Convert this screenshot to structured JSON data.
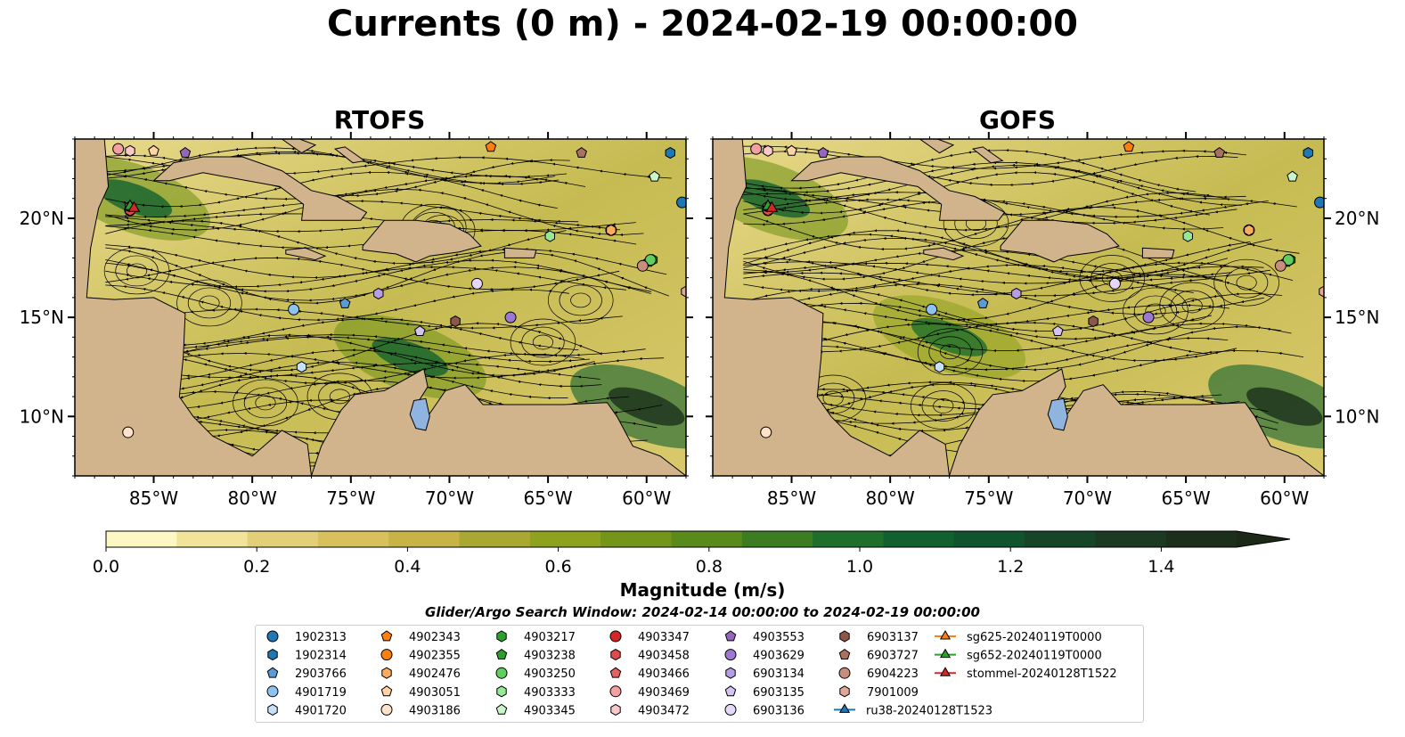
{
  "figure": {
    "title": "Currents (0 m) - 2024-02-19 00:00:00",
    "panels": [
      "RTOFS",
      "GOFS"
    ],
    "lon_ticks": [
      "85°W",
      "80°W",
      "75°W",
      "70°W",
      "65°W",
      "60°W"
    ],
    "lat_ticks": [
      "20°N",
      "15°N",
      "10°N"
    ],
    "colorbar": {
      "label": "Magnitude (m/s)",
      "ticks": [
        "0.0",
        "0.2",
        "0.4",
        "0.6",
        "0.8",
        "1.0",
        "1.2",
        "1.4"
      ],
      "colors": [
        "#fdf7c3",
        "#f1e49a",
        "#e3cf77",
        "#d8c05d",
        "#c8b446",
        "#a9a832",
        "#8fa21f",
        "#74951a",
        "#5a8a1c",
        "#3d7d22",
        "#1f6e2b",
        "#11612e",
        "#0f542c",
        "#174527",
        "#1c3a22",
        "#1c2f1c",
        "#1c2818"
      ]
    },
    "search_window": "Glider/Argo Search Window: 2024-02-14 00:00:00 to 2024-02-19 00:00:00"
  },
  "chart_data": {
    "type": "map",
    "variable": "Currents (0 m)",
    "units": "m/s",
    "colorbar_range": [
      0.0,
      1.5
    ],
    "colorbar_extend": "max",
    "lon_range": [
      -89,
      -58
    ],
    "lat_range": [
      7,
      24
    ],
    "panels": [
      {
        "name": "RTOFS",
        "fast_current_areas": [
          {
            "lon": -72,
            "lat": 13,
            "magnitude": 1.0
          },
          {
            "lon": -60,
            "lat": 10.5,
            "magnitude": 1.4
          },
          {
            "lon": -86,
            "lat": 21,
            "magnitude": 1.0
          }
        ]
      },
      {
        "name": "GOFS",
        "fast_current_areas": [
          {
            "lon": -60,
            "lat": 10.5,
            "magnitude": 1.4
          },
          {
            "lon": -77,
            "lat": 14,
            "magnitude": 0.9
          },
          {
            "lon": -86,
            "lat": 21,
            "magnitude": 1.0
          }
        ]
      }
    ],
    "stations": [
      {
        "id": "1902313",
        "lon": -58.2,
        "lat": 20.8,
        "marker": "circle",
        "color": "#1f77b4"
      },
      {
        "id": "1902314",
        "lon": -58.8,
        "lat": 23.3,
        "marker": "hexagon",
        "color": "#1f77b4"
      },
      {
        "id": "2903766",
        "lon": -75.3,
        "lat": 15.7,
        "marker": "pentagon",
        "color": "#5b9bd5"
      },
      {
        "id": "4901719",
        "lon": -77.9,
        "lat": 15.4,
        "marker": "circle",
        "color": "#8ec3f0"
      },
      {
        "id": "4901720",
        "lon": -77.5,
        "lat": 12.5,
        "marker": "hexagon",
        "color": "#c6e2fb"
      },
      {
        "id": "4902343",
        "lon": -67.9,
        "lat": 23.6,
        "marker": "pentagon",
        "color": "#ff7f0e"
      },
      {
        "id": "4902355",
        "lon": -61.8,
        "lat": 19.4,
        "marker": "circle",
        "color": "#ff7f0e"
      },
      {
        "id": "4902476",
        "lon": -61.8,
        "lat": 19.4,
        "marker": "hexagon",
        "color": "#ffab5e"
      },
      {
        "id": "4903051",
        "lon": -85,
        "lat": 23.4,
        "marker": "pentagon",
        "color": "#ffd3a6"
      },
      {
        "id": "4903186",
        "lon": -86.3,
        "lat": 9.2,
        "marker": "circle",
        "color": "#ffe3c8"
      },
      {
        "id": "4903217",
        "lon": -59.7,
        "lat": 17.9,
        "marker": "hexagon",
        "color": "#2ca02c"
      },
      {
        "id": "4903238",
        "lon": -59.9,
        "lat": 17.8,
        "marker": "pentagon",
        "color": "#2ca02c"
      },
      {
        "id": "4903250",
        "lon": -59.8,
        "lat": 17.9,
        "marker": "circle",
        "color": "#5fcf5f"
      },
      {
        "id": "4903333",
        "lon": -64.9,
        "lat": 19.1,
        "marker": "hexagon",
        "color": "#96e796"
      },
      {
        "id": "4903345",
        "lon": -59.6,
        "lat": 22.1,
        "marker": "pentagon",
        "color": "#c9f5c9"
      },
      {
        "id": "4903347",
        "lon": -86.2,
        "lat": 20.4,
        "marker": "circle",
        "color": "#d62728"
      },
      {
        "id": "4903458",
        "lon": -86.2,
        "lat": 20.4,
        "marker": "hexagon",
        "color": "#e04a4a"
      },
      {
        "id": "4903466",
        "lon": -86.2,
        "lat": 20.6,
        "marker": "pentagon",
        "color": "#e86060"
      },
      {
        "id": "4903469",
        "lon": -86.8,
        "lat": 23.5,
        "marker": "circle",
        "color": "#f4a0a0"
      },
      {
        "id": "4903472",
        "lon": -86.2,
        "lat": 23.4,
        "marker": "hexagon",
        "color": "#fbc8c8"
      },
      {
        "id": "4903553",
        "lon": -83.4,
        "lat": 23.3,
        "marker": "pentagon",
        "color": "#9467bd"
      },
      {
        "id": "4903629",
        "lon": -66.9,
        "lat": 15.0,
        "marker": "circle",
        "color": "#9d78d3"
      },
      {
        "id": "6903134",
        "lon": -73.6,
        "lat": 16.2,
        "marker": "hexagon",
        "color": "#b69de4"
      },
      {
        "id": "6903135",
        "lon": -71.5,
        "lat": 14.3,
        "marker": "pentagon",
        "color": "#d5c3f1"
      },
      {
        "id": "6903136",
        "lon": -68.6,
        "lat": 16.7,
        "marker": "circle",
        "color": "#e6d8f8"
      },
      {
        "id": "6903137",
        "lon": -69.7,
        "lat": 14.8,
        "marker": "hexagon",
        "color": "#8c564b"
      },
      {
        "id": "6903727",
        "lon": -63.3,
        "lat": 23.3,
        "marker": "pentagon",
        "color": "#a9715f"
      },
      {
        "id": "6904223",
        "lon": -60.2,
        "lat": 17.6,
        "marker": "circle",
        "color": "#c98d7e"
      },
      {
        "id": "7901009",
        "lon": -58.0,
        "lat": 16.3,
        "marker": "hexagon",
        "color": "#e0a79a"
      }
    ],
    "gliders": [
      {
        "id": "ru38-20240128T1523",
        "lon": -86.2,
        "lat": 20.6,
        "color": "#1f77b4"
      },
      {
        "id": "sg625-20240119T0000",
        "lon": -86.2,
        "lat": 20.6,
        "color": "#ff7f0e"
      },
      {
        "id": "sg652-20240119T0000",
        "lon": -86.2,
        "lat": 20.6,
        "color": "#2ca02c"
      },
      {
        "id": "stommel-20240128T1522",
        "lon": -86.0,
        "lat": 20.5,
        "color": "#d62728"
      }
    ]
  }
}
